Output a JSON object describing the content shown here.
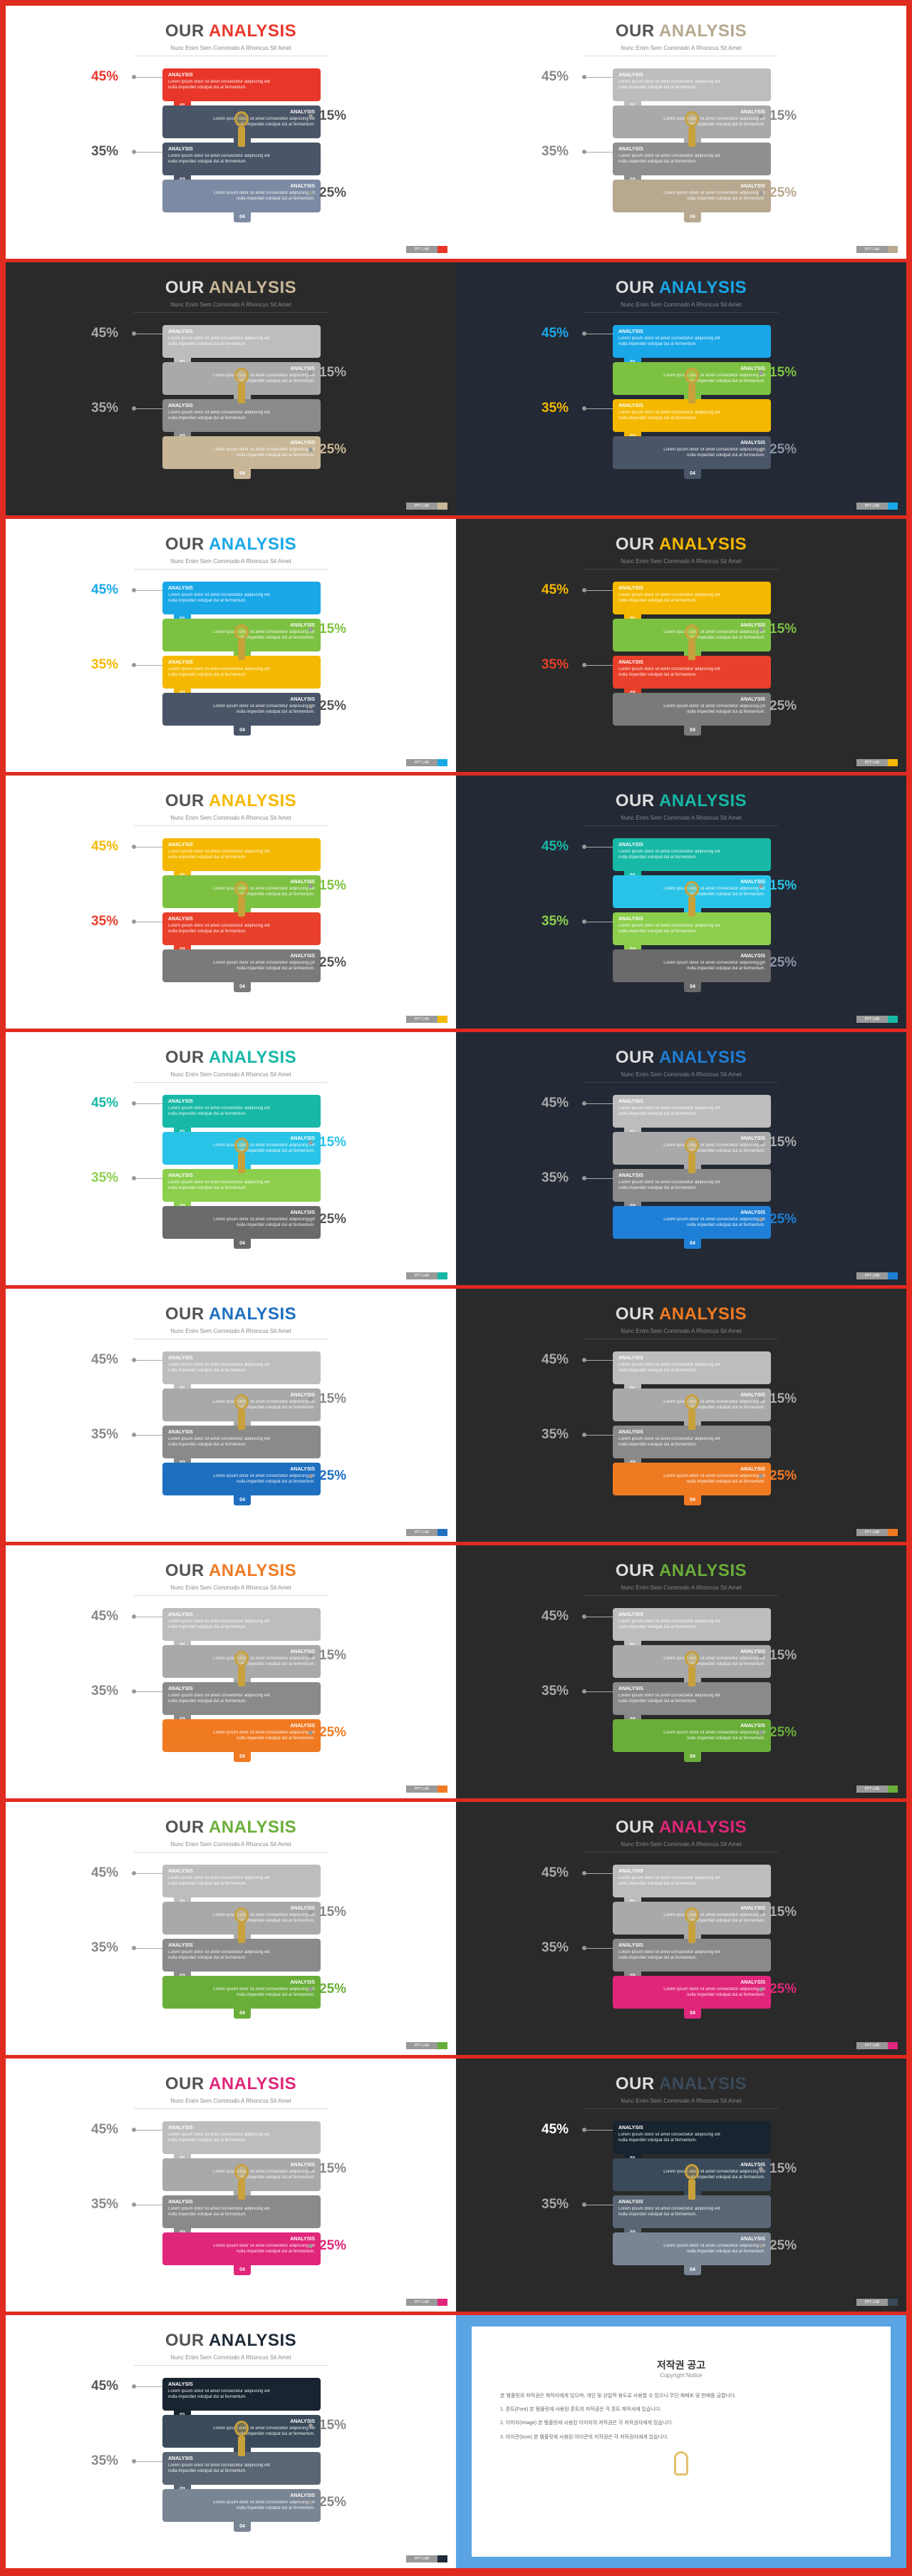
{
  "slide_text": {
    "title_prefix": "OUR",
    "title_word": "ANALYSIS",
    "subtitle": "Nunc Enim Sem Commodo A Rhoncus Sit Amet",
    "strip_heading": "ANALYSIS",
    "strip_body": "Lorem ipsum dolor sit amet consectetur adipiscing elit nulla imperdiet volutpat dui at fermentum.",
    "numbers": [
      "01",
      "02",
      "03",
      "04"
    ],
    "percents": [
      "45%",
      "15%",
      "35%",
      "25%"
    ],
    "footer_label": "PPT LAB"
  },
  "slides": [
    {
      "theme": "light",
      "accent": "#e8372a",
      "pct_colors": [
        "#e8372a",
        "#555555",
        "#555555",
        "#555555"
      ],
      "strips": [
        "#e8372a",
        "#4a5568",
        "#4a5568",
        "#7d8aa3"
      ]
    },
    {
      "theme": "light",
      "accent": "#b7a88f",
      "pct_colors": [
        "#888888",
        "#888888",
        "#888888",
        "#b7a88f"
      ],
      "strips": [
        "#bdbdbd",
        "#a9a9a9",
        "#8f8f8f",
        "#b7a88f"
      ]
    },
    {
      "theme": "dark",
      "accent": "#c8b697",
      "pct_colors": [
        "#aaaaaa",
        "#aaaaaa",
        "#aaaaaa",
        "#c8b697"
      ],
      "strips": [
        "#bdbdbd",
        "#a9a9a9",
        "#8a8a8a",
        "#c8b697"
      ]
    },
    {
      "theme": "navy",
      "accent": "#1aa7e8",
      "pct_colors": [
        "#1aa7e8",
        "#7dc142",
        "#f5b800",
        "#8a93a5"
      ],
      "strips": [
        "#1aa7e8",
        "#7dc142",
        "#f5b800",
        "#4a5568"
      ]
    },
    {
      "theme": "light",
      "accent": "#1aa7e8",
      "pct_colors": [
        "#1aa7e8",
        "#7dc142",
        "#f5b800",
        "#555555"
      ],
      "strips": [
        "#1aa7e8",
        "#7dc142",
        "#f5b800",
        "#4a5568"
      ]
    },
    {
      "theme": "dark",
      "accent": "#f5b800",
      "pct_colors": [
        "#f5b800",
        "#7dc142",
        "#e8402a",
        "#aaaaaa"
      ],
      "strips": [
        "#f5b800",
        "#7dc142",
        "#e8402a",
        "#7a7a7a"
      ]
    },
    {
      "theme": "light",
      "accent": "#f5b800",
      "pct_colors": [
        "#f5b800",
        "#7dc142",
        "#e8402a",
        "#555555"
      ],
      "strips": [
        "#f5b800",
        "#7dc142",
        "#e8402a",
        "#7a7a7a"
      ]
    },
    {
      "theme": "navy",
      "accent": "#17b8a6",
      "pct_colors": [
        "#17b8a6",
        "#2ac3e8",
        "#8ccf4d",
        "#8a93a5"
      ],
      "strips": [
        "#17b8a6",
        "#2ac3e8",
        "#8ccf4d",
        "#6a6a6a"
      ]
    },
    {
      "theme": "light",
      "accent": "#17b8a6",
      "pct_colors": [
        "#17b8a6",
        "#2ac3e8",
        "#8ccf4d",
        "#555555"
      ],
      "strips": [
        "#17b8a6",
        "#2ac3e8",
        "#8ccf4d",
        "#6a6a6a"
      ]
    },
    {
      "theme": "navy",
      "accent": "#1e7fd6",
      "pct_colors": [
        "#aaaaaa",
        "#aaaaaa",
        "#aaaaaa",
        "#1e7fd6"
      ],
      "strips": [
        "#bdbdbd",
        "#a9a9a9",
        "#8a8a8a",
        "#1e7fd6"
      ]
    },
    {
      "theme": "light",
      "accent": "#1e6fc0",
      "pct_colors": [
        "#888888",
        "#888888",
        "#888888",
        "#1e6fc0"
      ],
      "strips": [
        "#bdbdbd",
        "#a9a9a9",
        "#8a8a8a",
        "#1e6fc0"
      ]
    },
    {
      "theme": "dark",
      "accent": "#f07a22",
      "pct_colors": [
        "#aaaaaa",
        "#aaaaaa",
        "#aaaaaa",
        "#f07a22"
      ],
      "strips": [
        "#bdbdbd",
        "#a9a9a9",
        "#8a8a8a",
        "#f07a22"
      ]
    },
    {
      "theme": "light",
      "accent": "#f07a22",
      "pct_colors": [
        "#888888",
        "#888888",
        "#888888",
        "#f07a22"
      ],
      "strips": [
        "#bdbdbd",
        "#a9a9a9",
        "#8a8a8a",
        "#f07a22"
      ]
    },
    {
      "theme": "dark",
      "accent": "#6aae3a",
      "pct_colors": [
        "#aaaaaa",
        "#aaaaaa",
        "#aaaaaa",
        "#6aae3a"
      ],
      "strips": [
        "#bdbdbd",
        "#a9a9a9",
        "#8a8a8a",
        "#6aae3a"
      ]
    },
    {
      "theme": "light",
      "accent": "#6aae3a",
      "pct_colors": [
        "#888888",
        "#888888",
        "#888888",
        "#6aae3a"
      ],
      "strips": [
        "#bdbdbd",
        "#a9a9a9",
        "#8a8a8a",
        "#6aae3a"
      ]
    },
    {
      "theme": "dark",
      "accent": "#e0267a",
      "pct_colors": [
        "#aaaaaa",
        "#aaaaaa",
        "#aaaaaa",
        "#e0267a"
      ],
      "strips": [
        "#bdbdbd",
        "#a9a9a9",
        "#8a8a8a",
        "#e0267a"
      ]
    },
    {
      "theme": "light",
      "accent": "#e0267a",
      "pct_colors": [
        "#888888",
        "#888888",
        "#888888",
        "#e0267a"
      ],
      "strips": [
        "#bdbdbd",
        "#a9a9a9",
        "#8a8a8a",
        "#e0267a"
      ]
    },
    {
      "theme": "dark",
      "accent": "#3a4a5a",
      "pct_colors": [
        "#ffffff",
        "#aaaaaa",
        "#aaaaaa",
        "#aaaaaa"
      ],
      "strips": [
        "#182430",
        "#3a4a5a",
        "#5a6674",
        "#7a8594"
      ]
    },
    {
      "theme": "light",
      "accent": "#1e2a38",
      "pct_colors": [
        "#555555",
        "#888888",
        "#888888",
        "#888888"
      ],
      "strips": [
        "#182430",
        "#3a4a5a",
        "#5a6674",
        "#7a8594"
      ]
    }
  ],
  "notice": {
    "title": "저작권 공고",
    "subtitle": "Copyright Notice",
    "paragraphs": [
      "본 템플릿의 저작권은 제작자에게 있으며, 개인 및 상업적 용도로 사용할 수 있으나 무단 재배포 및 판매를 금합니다.",
      "1. 폰트(Font) 본 템플릿에 사용된 폰트의 저작권은 각 폰트 제작사에 있습니다.",
      "2. 이미지(Image) 본 템플릿에 사용된 이미지의 저작권은 각 저작권자에게 있습니다.",
      "3. 아이콘(Icon) 본 템플릿에 사용된 아이콘의 저작권은 각 저작권자에게 있습니다."
    ]
  }
}
